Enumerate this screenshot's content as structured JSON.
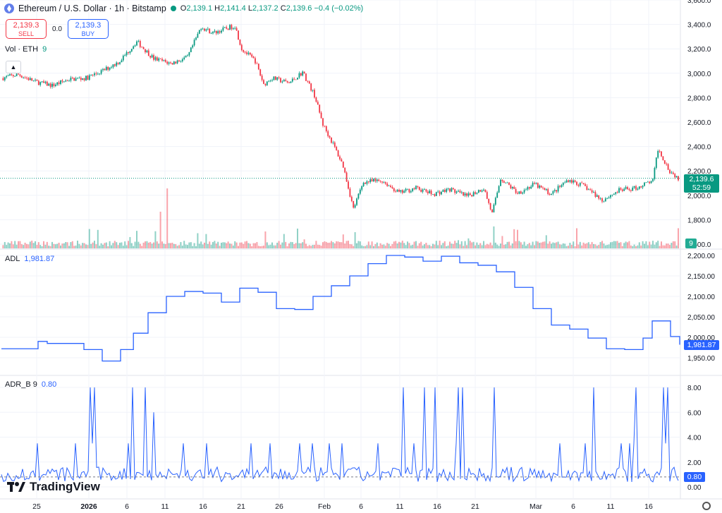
{
  "header": {
    "title": "Ethereum / U.S. Dollar · 1h · Bitstamp",
    "ohlc": {
      "o_label": "O",
      "o": "2,139.1",
      "h_label": "H",
      "h": "2,141.4",
      "l_label": "L",
      "l": "2,137.2",
      "c_label": "C",
      "c": "2,139.6",
      "chg": "−0.4 (−0.02%)"
    }
  },
  "trade": {
    "sell_price": "2,139.3",
    "sell_label": "SELL",
    "spread": "0.0",
    "buy_price": "2,139.3",
    "buy_label": "BUY"
  },
  "volume_legend": {
    "name": "Vol · ETH",
    "value": "9"
  },
  "adl_legend": {
    "name": "ADL",
    "value": "1,981.87"
  },
  "adrb_legend": {
    "name": "ADR_B 9",
    "value": "0.80"
  },
  "price_axis": {
    "ticks": [
      "3,600.0",
      "3,400.0",
      "3,200.0",
      "3,000.0",
      "2,800.0",
      "2,600.0",
      "2,400.0",
      "2,200.0",
      "2,000.0",
      "1,800.0",
      "1,600.0"
    ]
  },
  "adl_axis": {
    "ticks": [
      "2,200.00",
      "2,150.00",
      "2,100.00",
      "2,050.00",
      "2,000.00",
      "1,950.00"
    ]
  },
  "adrb_axis": {
    "ticks": [
      "8.00",
      "6.00",
      "4.00",
      "2.00",
      "0.00"
    ]
  },
  "price_tag": {
    "price": "2,139.6",
    "countdown": "52:59"
  },
  "volume_tag": "9",
  "adl_tag": "1,981.87",
  "adrb_tag": "0.80",
  "time_axis": {
    "labels": [
      "25",
      "2026",
      "6",
      "11",
      "16",
      "21",
      "26",
      "Feb",
      "6",
      "11",
      "16",
      "21",
      "Mar",
      "6",
      "11",
      "16"
    ]
  },
  "brand": "TradingView",
  "colors": {
    "up": "#089981",
    "down": "#f23645",
    "line": "#2962ff",
    "grid": "#f0f3fa"
  },
  "chart_data": {
    "type": "candlestick",
    "price_path": [
      [
        0,
        2960
      ],
      [
        10,
        2990
      ],
      [
        20,
        2930
      ],
      [
        30,
        2900
      ],
      [
        40,
        2950
      ],
      [
        50,
        2960
      ],
      [
        60,
        3020
      ],
      [
        70,
        3100
      ],
      [
        80,
        3260
      ],
      [
        90,
        3120
      ],
      [
        100,
        3080
      ],
      [
        110,
        3130
      ],
      [
        118,
        3380
      ],
      [
        125,
        3330
      ],
      [
        138,
        3390
      ],
      [
        142,
        3200
      ],
      [
        150,
        3100
      ],
      [
        155,
        2910
      ],
      [
        160,
        2960
      ],
      [
        170,
        2920
      ],
      [
        178,
        3010
      ],
      [
        185,
        2820
      ],
      [
        190,
        2580
      ],
      [
        196,
        2420
      ],
      [
        202,
        2240
      ],
      [
        208,
        1890
      ],
      [
        214,
        2110
      ],
      [
        225,
        2120
      ],
      [
        235,
        2020
      ],
      [
        245,
        2060
      ],
      [
        255,
        2010
      ],
      [
        265,
        2050
      ],
      [
        275,
        1990
      ],
      [
        285,
        2060
      ],
      [
        290,
        1850
      ],
      [
        295,
        2140
      ],
      [
        305,
        2020
      ],
      [
        315,
        2090
      ],
      [
        325,
        2010
      ],
      [
        335,
        2130
      ],
      [
        345,
        2070
      ],
      [
        355,
        1960
      ],
      [
        365,
        2040
      ],
      [
        375,
        2060
      ],
      [
        385,
        2120
      ],
      [
        388,
        2380
      ],
      [
        395,
        2200
      ],
      [
        400,
        2139.6
      ]
    ],
    "adl_path": [
      [
        0,
        1972
      ],
      [
        15,
        1972
      ],
      [
        20,
        1990
      ],
      [
        25,
        1985
      ],
      [
        35,
        1985
      ],
      [
        45,
        1970
      ],
      [
        55,
        1942
      ],
      [
        65,
        1970
      ],
      [
        72,
        2010
      ],
      [
        80,
        2060
      ],
      [
        90,
        2100
      ],
      [
        100,
        2112
      ],
      [
        110,
        2108
      ],
      [
        120,
        2086
      ],
      [
        130,
        2120
      ],
      [
        140,
        2110
      ],
      [
        150,
        2070
      ],
      [
        160,
        2068
      ],
      [
        170,
        2100
      ],
      [
        180,
        2126
      ],
      [
        190,
        2150
      ],
      [
        200,
        2180
      ],
      [
        210,
        2200
      ],
      [
        220,
        2196
      ],
      [
        230,
        2186
      ],
      [
        240,
        2198
      ],
      [
        250,
        2182
      ],
      [
        260,
        2176
      ],
      [
        270,
        2160
      ],
      [
        280,
        2122
      ],
      [
        290,
        2070
      ],
      [
        300,
        2030
      ],
      [
        310,
        2020
      ],
      [
        320,
        1998
      ],
      [
        330,
        1972
      ],
      [
        340,
        1970
      ],
      [
        350,
        1998
      ],
      [
        355,
        2040
      ],
      [
        365,
        2002
      ],
      [
        370,
        1981.87
      ]
    ],
    "adrb_last": 0.8
  }
}
